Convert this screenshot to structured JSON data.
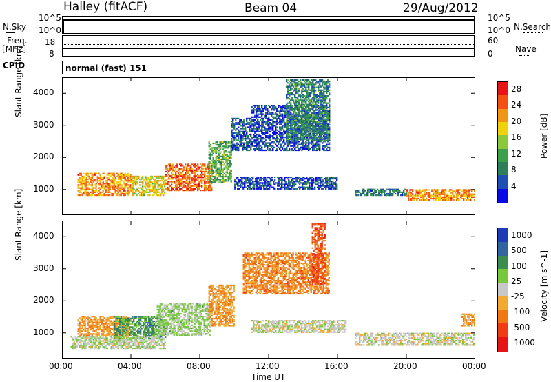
{
  "header": {
    "title": "Halley (fitACF)",
    "beam": "Beam 04",
    "date": "29/Aug/2012"
  },
  "nsky_panel": {
    "left_label": "N.Sky",
    "right_label": "N.Search",
    "left_ticks": [
      "10^5",
      "10^0"
    ],
    "right_ticks": [
      "10^5",
      "10^0"
    ]
  },
  "freq_panel": {
    "left_label_1": "Freq.",
    "left_label_2": "[MHz]",
    "right_label": "Nave",
    "left_ticks": [
      "18",
      "8"
    ],
    "right_ticks": [
      "60",
      "0"
    ]
  },
  "cpid_panel": {
    "label": "CPID",
    "value": "normal (fast) 151"
  },
  "colors": {
    "frame": "#000000",
    "ground_scatter": "#c8c8c8",
    "power_scale": [
      "#0a0ae6",
      "#1e50b4",
      "#2d7f5a",
      "#3ca04b",
      "#8cc83c",
      "#f0d20a",
      "#f09614",
      "#f55014",
      "#e61414"
    ],
    "velocity_scale": [
      "#1e3cb4",
      "#3264a0",
      "#3c8c50",
      "#78c83c",
      "#c8c8c8",
      "#f0aa32",
      "#f07814",
      "#f03c14",
      "#e61414"
    ]
  },
  "chart_data": [
    {
      "type": "heatmap",
      "title": "Power",
      "xlabel": "",
      "ylabel": "Slant Range [km]",
      "xlim": [
        0,
        24
      ],
      "ylim": [
        200,
        4500
      ],
      "x_ticks": [
        "00:00",
        "04:00",
        "08:00",
        "12:00",
        "16:00",
        "20:00",
        "00:00"
      ],
      "y_ticks": [
        "1000",
        "2000",
        "3000",
        "4000"
      ],
      "colorbar": {
        "label": "Power [dB]",
        "ticks": [
          "4",
          "8",
          "12",
          "16",
          "20",
          "24",
          "28"
        ],
        "range": [
          0,
          30
        ]
      },
      "regions": [
        {
          "t0": 0.9,
          "t1": 4.0,
          "r0": 800,
          "r1": 1500,
          "level": 22
        },
        {
          "t0": 4.0,
          "t1": 6.0,
          "r0": 800,
          "r1": 1400,
          "level": 18
        },
        {
          "t0": 6.0,
          "t1": 8.7,
          "r0": 950,
          "r1": 1800,
          "level": 24
        },
        {
          "t0": 8.5,
          "t1": 9.8,
          "r0": 1200,
          "r1": 2500,
          "level": 12
        },
        {
          "t0": 9.8,
          "t1": 11.0,
          "r0": 2200,
          "r1": 3200,
          "level": 6
        },
        {
          "t0": 11.0,
          "t1": 15.5,
          "r0": 2200,
          "r1": 3600,
          "level": 5
        },
        {
          "t0": 13.0,
          "t1": 15.5,
          "r0": 2500,
          "r1": 4400,
          "level": 9
        },
        {
          "t0": 10.0,
          "t1": 16.0,
          "r0": 1000,
          "r1": 1400,
          "level": 5
        },
        {
          "t0": 17.0,
          "t1": 20.0,
          "r0": 800,
          "r1": 1000,
          "level": 8
        },
        {
          "t0": 20.0,
          "t1": 24.0,
          "r0": 650,
          "r1": 1000,
          "level": 22
        }
      ]
    },
    {
      "type": "heatmap",
      "title": "Velocity",
      "xlabel": "Time UT",
      "ylabel": "Slant Range [km]",
      "xlim": [
        0,
        24
      ],
      "ylim": [
        200,
        4500
      ],
      "x_ticks": [
        "00:00",
        "04:00",
        "08:00",
        "12:00",
        "16:00",
        "20:00",
        "00:00"
      ],
      "y_ticks": [
        "1000",
        "2000",
        "3000",
        "4000"
      ],
      "colorbar": {
        "label": "Velocity [m s^-1]",
        "ticks": [
          "1000",
          "500",
          "100",
          "25",
          "-25",
          "-100",
          "-500",
          "-1000"
        ],
        "range": [
          -1000,
          1000
        ]
      },
      "regions": [
        {
          "t0": 0.9,
          "t1": 4.0,
          "r0": 900,
          "r1": 1500,
          "velocity": -300
        },
        {
          "t0": 3.0,
          "t1": 6.0,
          "r0": 800,
          "r1": 1500,
          "velocity": 400
        },
        {
          "t0": 5.5,
          "t1": 8.6,
          "r0": 900,
          "r1": 1900,
          "velocity": 150
        },
        {
          "t0": 8.5,
          "t1": 10.0,
          "r0": 1200,
          "r1": 2500,
          "velocity": -300
        },
        {
          "t0": 10.5,
          "t1": 15.5,
          "r0": 2200,
          "r1": 3500,
          "velocity": -400
        },
        {
          "t0": 14.5,
          "t1": 15.3,
          "r0": 2500,
          "r1": 4400,
          "velocity": -600
        },
        {
          "t0": 11.0,
          "t1": 16.5,
          "r0": 1000,
          "r1": 1400,
          "velocity": 0
        },
        {
          "t0": 0.5,
          "t1": 6.0,
          "r0": 500,
          "r1": 900,
          "velocity": 60
        },
        {
          "t0": 17.0,
          "t1": 24.0,
          "r0": 600,
          "r1": 1000,
          "velocity": 0
        },
        {
          "t0": 23.2,
          "t1": 24.0,
          "r0": 1200,
          "r1": 1600,
          "velocity": -300
        }
      ]
    }
  ]
}
